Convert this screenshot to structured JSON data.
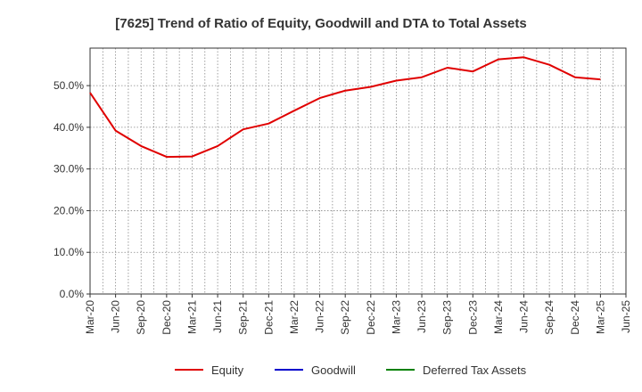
{
  "chart_data": {
    "type": "line",
    "title": "[7625]  Trend of Ratio of Equity, Goodwill and DTA to Total Assets",
    "xlabel": "",
    "ylabel": "",
    "ylim": [
      0,
      59
    ],
    "yticks": [
      0,
      10,
      20,
      30,
      40,
      50
    ],
    "ytick_labels": [
      "0.0%",
      "10.0%",
      "20.0%",
      "30.0%",
      "40.0%",
      "50.0%"
    ],
    "x_tick_labels": [
      "Mar-20",
      "Jun-20",
      "Sep-20",
      "Dec-20",
      "Mar-21",
      "Jun-21",
      "Sep-21",
      "Dec-21",
      "Mar-22",
      "Jun-22",
      "Sep-22",
      "Dec-22",
      "Mar-23",
      "Jun-23",
      "Sep-23",
      "Dec-23",
      "Mar-24",
      "Jun-24",
      "Sep-24",
      "Dec-24",
      "Mar-25",
      "Jun-25"
    ],
    "grid": true,
    "legend_position": "bottom",
    "series": [
      {
        "name": "Equity",
        "color": "#e00000",
        "values": [
          48.3,
          39.2,
          35.5,
          32.9,
          33.0,
          35.5,
          39.5,
          40.9,
          44.0,
          47.0,
          48.8,
          49.7,
          51.2,
          52.0,
          54.3,
          53.4,
          56.3,
          56.8,
          55.0,
          52.0,
          51.5
        ]
      },
      {
        "name": "Goodwill",
        "color": "#0000cc",
        "values": []
      },
      {
        "name": "Deferred Tax Assets",
        "color": "#008000",
        "values": []
      }
    ]
  }
}
